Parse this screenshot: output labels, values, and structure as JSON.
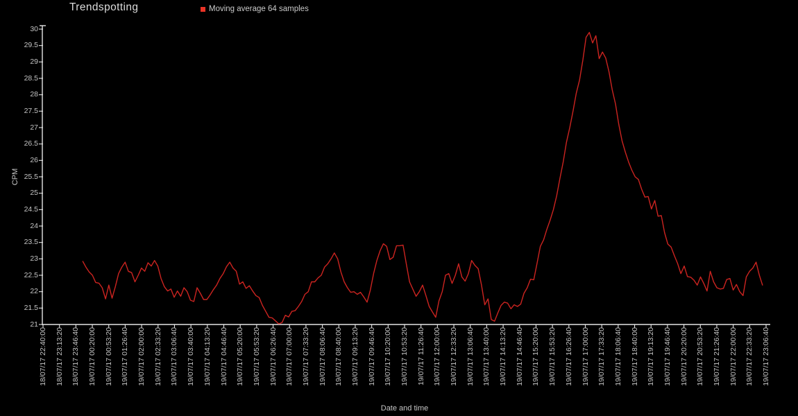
{
  "chart": {
    "title": "Trendspotting",
    "legend": {
      "label": "Moving average 64 samples",
      "marker_color": "#ea3326",
      "marker_icon": "legend-square-icon"
    },
    "ylabel": "CPM",
    "xlabel": "Date and time"
  },
  "chart_data": {
    "type": "line",
    "title": "Trendspotting",
    "xlabel": "Date and time",
    "ylabel": "CPM",
    "legend_entries": [
      "Moving average 64 samples"
    ],
    "legend_position": "top",
    "grid": false,
    "background_color": "#000000",
    "axis_color": "#e6e6e6",
    "text_color": "#c4c4c4",
    "line_color": "#cc2420",
    "ylim": [
      21,
      30
    ],
    "y_ticks": [
      "21",
      "21.5",
      "22",
      "22.5",
      "23",
      "23.5",
      "24",
      "24.5",
      "25",
      "25.5",
      "26",
      "26.5",
      "27",
      "27.5",
      "28",
      "28.5",
      "29",
      "29.5",
      "30"
    ],
    "x_labels": [
      "18/07/17 22:40:00",
      "18/07/17 23:13:20",
      "18/07/17 23:46:40",
      "19/07/17 00:20:00",
      "19/07/17 00:53:20",
      "19/07/17 01:26:40",
      "19/07/17 02:00:00",
      "19/07/17 02:33:20",
      "19/07/17 03:06:40",
      "19/07/17 03:40:00",
      "19/07/17 04:13:20",
      "19/07/17 04:46:40",
      "19/07/17 05:20:00",
      "19/07/17 05:53:20",
      "19/07/17 06:26:40",
      "19/07/17 07:00:00",
      "19/07/17 07:33:20",
      "19/07/17 08:06:40",
      "19/07/17 08:40:00",
      "19/07/17 09:13:20",
      "19/07/17 09:46:40",
      "19/07/17 10:20:00",
      "19/07/17 10:53:20",
      "19/07/17 11:26:40",
      "19/07/17 12:00:00",
      "19/07/17 12:33:20",
      "19/07/17 13:06:40",
      "19/07/17 13:40:00",
      "19/07/17 14:13:20",
      "19/07/17 14:46:40",
      "19/07/17 15:20:00",
      "19/07/17 15:53:20",
      "19/07/17 16:26:40",
      "19/07/17 17:00:00",
      "19/07/17 17:33:20",
      "19/07/17 18:06:40",
      "19/07/17 18:40:00",
      "19/07/17 19:13:20",
      "19/07/17 19:46:40",
      "19/07/17 20:20:00",
      "19/07/17 20:53:20",
      "19/07/17 21:26:40",
      "19/07/17 22:00:00",
      "19/07/17 22:33:20",
      "19/07/17 23:06:40"
    ],
    "series": [
      {
        "name": "Moving average 64 samples",
        "x_unit": "x-axis tick index (0 = first label, spacing 00:33:20)",
        "x_range_in_label_index": [
          2.41,
          43.79
        ],
        "values": [
          22.93,
          22.75,
          22.6,
          22.5,
          22.28,
          22.26,
          22.12,
          21.78,
          22.2,
          21.8,
          22.15,
          22.55,
          22.75,
          22.9,
          22.62,
          22.58,
          22.3,
          22.5,
          22.72,
          22.62,
          22.88,
          22.78,
          22.95,
          22.78,
          22.4,
          22.15,
          22.02,
          22.08,
          21.83,
          22.02,
          21.86,
          22.12,
          22.0,
          21.74,
          21.7,
          22.12,
          21.95,
          21.76,
          21.76,
          21.9,
          22.06,
          22.2,
          22.4,
          22.55,
          22.76,
          22.9,
          22.72,
          22.62,
          22.23,
          22.3,
          22.1,
          22.18,
          22.02,
          21.88,
          21.82,
          21.58,
          21.4,
          21.22,
          21.2,
          21.11,
          21.02,
          21.06,
          21.28,
          21.23,
          21.4,
          21.42,
          21.55,
          21.7,
          21.92,
          22.0,
          22.3,
          22.3,
          22.42,
          22.5,
          22.75,
          22.85,
          23.0,
          23.18,
          23.0,
          22.6,
          22.3,
          22.12,
          21.98,
          22.0,
          21.92,
          21.98,
          21.84,
          21.68,
          22.05,
          22.55,
          22.95,
          23.25,
          23.46,
          23.38,
          22.98,
          23.05,
          23.4,
          23.4,
          23.42,
          22.85,
          22.3,
          22.08,
          21.86,
          22.0,
          22.2,
          21.88,
          21.55,
          21.38,
          21.22,
          21.72,
          22.0,
          22.5,
          22.55,
          22.25,
          22.5,
          22.85,
          22.45,
          22.32,
          22.55,
          22.95,
          22.8,
          22.7,
          22.2,
          21.6,
          21.78,
          21.15,
          21.1,
          21.35,
          21.58,
          21.68,
          21.65,
          21.48,
          21.6,
          21.55,
          21.62,
          21.95,
          22.12,
          22.38,
          22.36,
          22.86,
          23.38,
          23.58,
          23.9,
          24.18,
          24.5,
          24.92,
          25.45,
          25.95,
          26.55,
          27.0,
          27.5,
          28.05,
          28.45,
          29.05,
          29.75,
          29.9,
          29.58,
          29.8,
          29.1,
          29.3,
          29.12,
          28.7,
          28.15,
          27.72,
          27.1,
          26.6,
          26.25,
          25.95,
          25.7,
          25.5,
          25.42,
          25.12,
          24.88,
          24.9,
          24.52,
          24.78,
          24.3,
          24.32,
          23.8,
          23.45,
          23.36,
          23.1,
          22.86,
          22.55,
          22.78,
          22.46,
          22.44,
          22.35,
          22.2,
          22.45,
          22.25,
          22.02,
          22.62,
          22.3,
          22.12,
          22.08,
          22.1,
          22.37,
          22.4,
          22.05,
          22.22,
          22.0,
          21.88,
          22.45,
          22.62,
          22.72,
          22.9,
          22.5,
          22.19
        ]
      }
    ]
  }
}
